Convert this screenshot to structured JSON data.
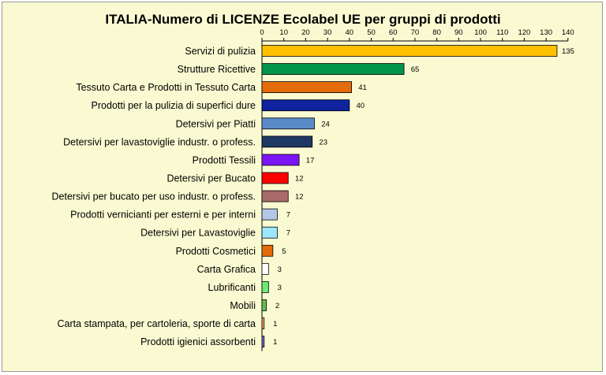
{
  "chart_data": {
    "type": "bar",
    "orientation": "horizontal",
    "title": "ITALIA-Numero di LICENZE  Ecolabel UE per gruppi di prodotti",
    "xlim": [
      0,
      140
    ],
    "xticks": [
      0,
      10,
      20,
      30,
      40,
      50,
      60,
      70,
      80,
      90,
      100,
      110,
      120,
      130,
      140
    ],
    "x_axis_position": "top",
    "grid": false,
    "legend": "none",
    "categories": [
      "Servizi di pulizia",
      "Strutture Ricettive",
      "Tessuto Carta e Prodotti in Tessuto Carta",
      "Prodotti per la pulizia di superfici dure",
      "Detersivi per Piatti",
      "Detersivi per lavastoviglie industr. o profess.",
      "Prodotti Tessili",
      "Detersivi per Bucato",
      "Detersivi per bucato per uso industr. o profess.",
      "Prodotti vernicianti per esterni e per interni",
      "Detersivi per Lavastoviglie",
      "Prodotti Cosmetici",
      "Carta Grafica",
      "Lubrificanti",
      "Mobili",
      "Carta stampata, per cartoleria, sporte di carta",
      "Prodotti igienici assorbenti"
    ],
    "values": [
      135,
      65,
      41,
      40,
      24,
      23,
      17,
      12,
      12,
      7,
      7,
      5,
      3,
      3,
      2,
      1,
      1
    ],
    "colors": [
      "#ffc000",
      "#00954b",
      "#e46c0a",
      "#0f239e",
      "#5b8ac8",
      "#1f3864",
      "#7b14f5",
      "#ff0000",
      "#a86a6a",
      "#b4c7e7",
      "#9ce6ff",
      "#e36c09",
      "#ffffff",
      "#6cec74",
      "#64c050",
      "#f4a460",
      "#7a6cc4"
    ]
  }
}
